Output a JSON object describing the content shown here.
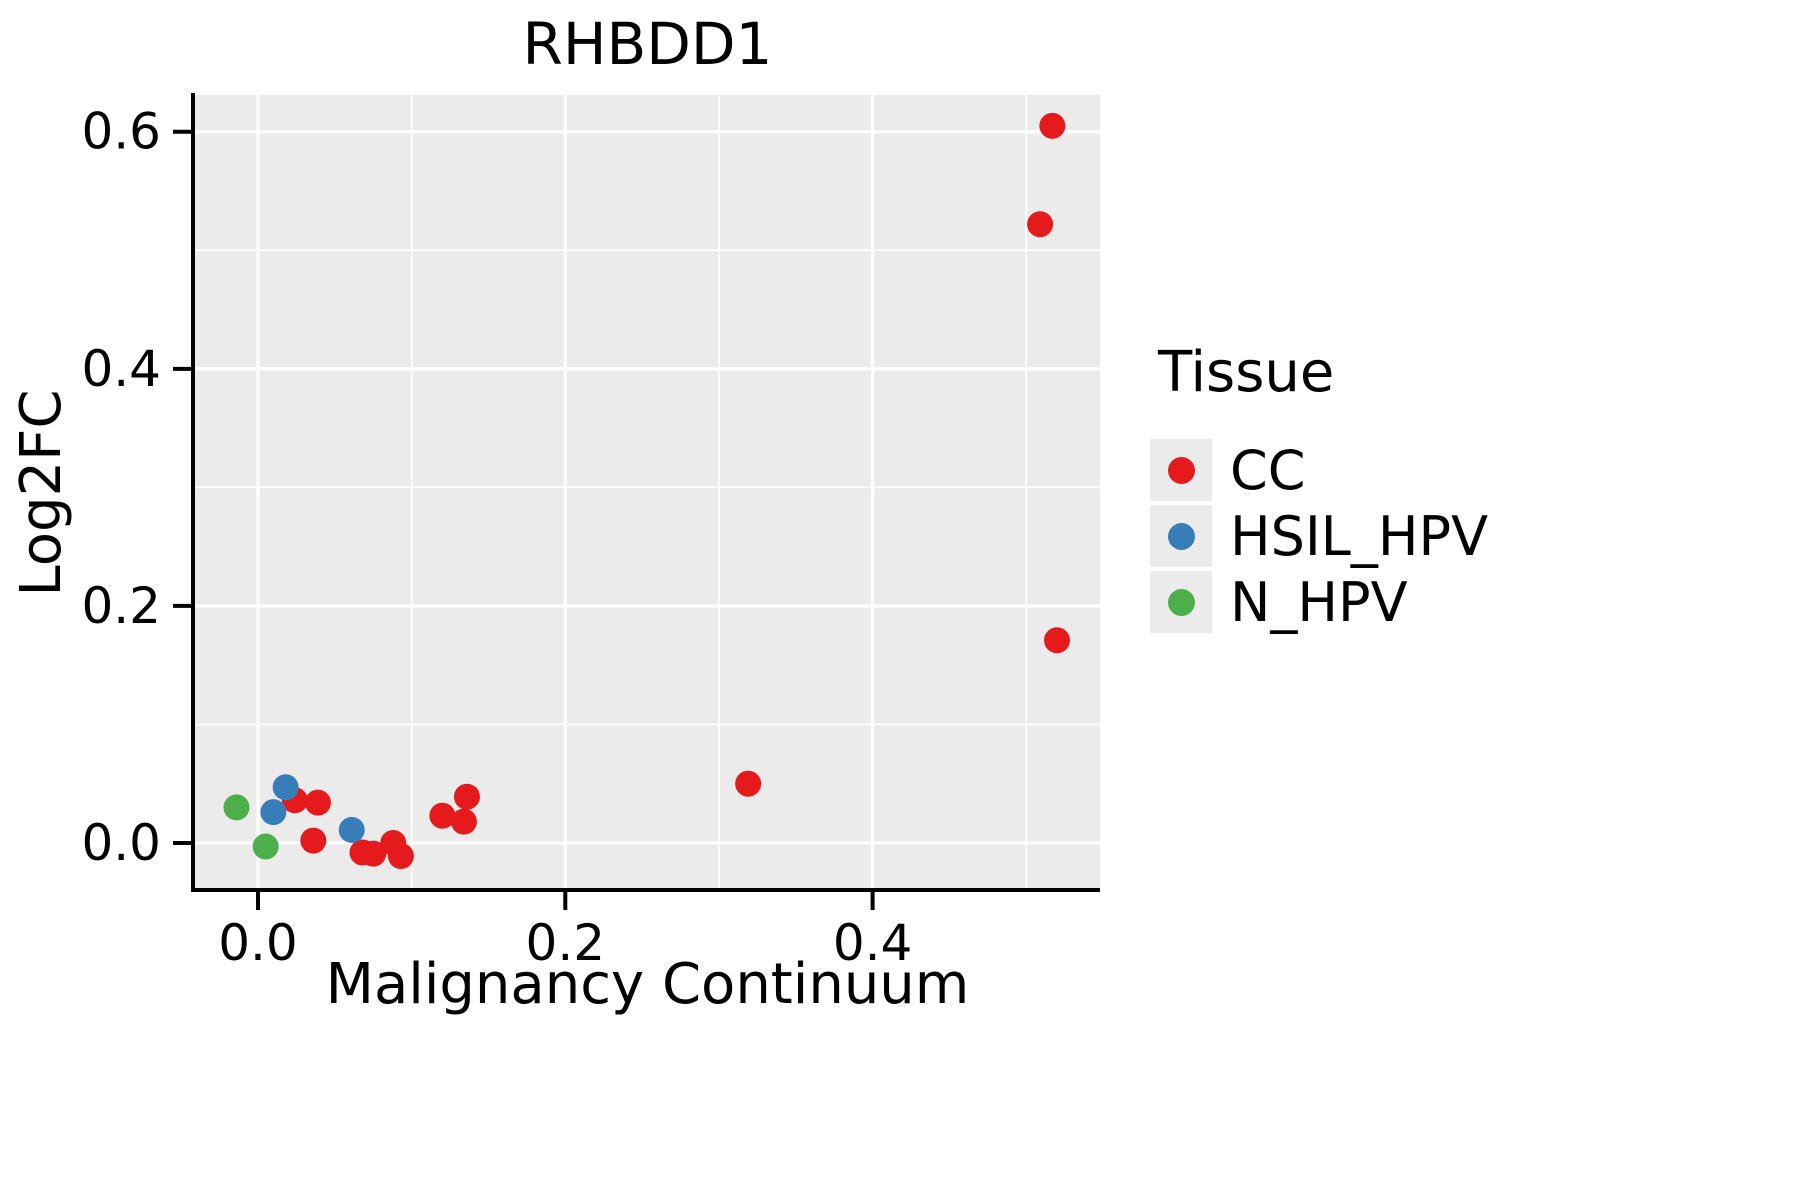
{
  "chart_data": {
    "type": "scatter",
    "title": "RHBDD1",
    "xlabel": "Malignancy Continuum",
    "ylabel": "Log2FC",
    "legend_title": "Tissue",
    "xlim": [
      -0.041,
      0.548
    ],
    "ylim": [
      -0.038,
      0.631
    ],
    "x_tick_values": [
      0.0,
      0.2,
      0.4
    ],
    "x_tick_labels": [
      "0.0",
      "0.2",
      "0.4"
    ],
    "y_tick_values": [
      0.0,
      0.2,
      0.4,
      0.6
    ],
    "y_tick_labels": [
      "0.0",
      "0.2",
      "0.4",
      "0.6"
    ],
    "x_minor_ticks": [
      0.1,
      0.3,
      0.5
    ],
    "y_minor_ticks": [
      0.1,
      0.3,
      0.5
    ],
    "grid": true,
    "legend_position": "right",
    "colors": {
      "panel_bg": "#EBEBEB",
      "grid": "#FFFFFF",
      "axis": "#000000",
      "text": "#000000",
      "cc": "#E41A1C",
      "hsil_hpv": "#377EB8",
      "n_hpv": "#4DAF4A"
    },
    "series": [
      {
        "name": "CC",
        "color": "#E41A1C",
        "points": [
          [
            0.024,
            0.036
          ],
          [
            0.039,
            0.034
          ],
          [
            0.036,
            0.002
          ],
          [
            0.068,
            -0.008
          ],
          [
            0.075,
            -0.009
          ],
          [
            0.088,
            0.0
          ],
          [
            0.093,
            -0.011
          ],
          [
            0.12,
            0.023
          ],
          [
            0.136,
            0.039
          ],
          [
            0.134,
            0.018
          ],
          [
            0.319,
            0.05
          ],
          [
            0.509,
            0.522
          ],
          [
            0.517,
            0.605
          ],
          [
            0.52,
            0.171
          ]
        ]
      },
      {
        "name": "HSIL_HPV",
        "color": "#377EB8",
        "points": [
          [
            0.018,
            0.047
          ],
          [
            0.01,
            0.026
          ],
          [
            0.061,
            0.011
          ]
        ]
      },
      {
        "name": "N_HPV",
        "color": "#4DAF4A",
        "points": [
          [
            -0.014,
            0.03
          ],
          [
            0.005,
            -0.003
          ]
        ]
      }
    ]
  }
}
